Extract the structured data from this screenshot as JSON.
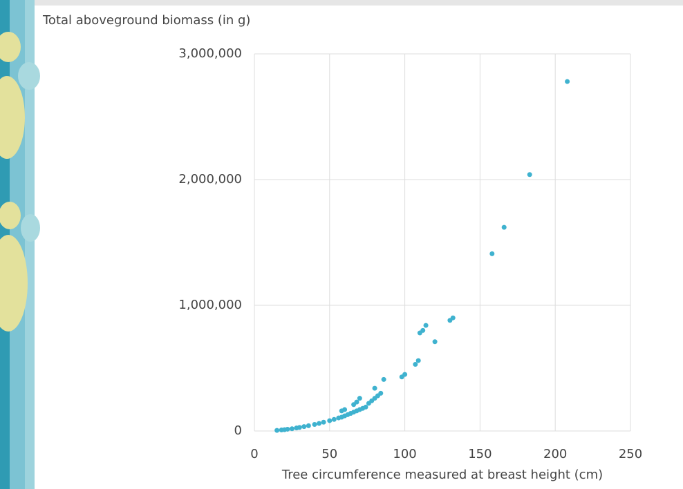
{
  "chart_data": {
    "type": "scatter",
    "y_label": "Total aboveground biomass (in g)",
    "x_label": "Tree circumference measured at breast height (cm)",
    "color": "#3fb2cf",
    "x": [
      15,
      18,
      20,
      22,
      25,
      28,
      30,
      33,
      36,
      40,
      43,
      46,
      50,
      53,
      56,
      58,
      58,
      60,
      60,
      62,
      64,
      66,
      66,
      68,
      68,
      70,
      70,
      72,
      74,
      76,
      78,
      80,
      80,
      82,
      84,
      86,
      98,
      100,
      107,
      109,
      110,
      112,
      114,
      120,
      130,
      132,
      158,
      166,
      183,
      208
    ],
    "values": [
      5000,
      8000,
      10000,
      14000,
      18000,
      24000,
      28000,
      35000,
      42000,
      52000,
      60000,
      70000,
      82000,
      92000,
      104000,
      110000,
      160000,
      120000,
      170000,
      130000,
      140000,
      150000,
      210000,
      160000,
      230000,
      170000,
      260000,
      180000,
      190000,
      220000,
      240000,
      260000,
      340000,
      280000,
      300000,
      410000,
      430000,
      450000,
      530000,
      560000,
      780000,
      800000,
      840000,
      710000,
      880000,
      900000,
      1410000,
      1620000,
      2040000,
      2780000
    ],
    "xlim": [
      0,
      250
    ],
    "xticks": [
      0,
      50,
      100,
      150,
      200,
      250
    ],
    "ylim": [
      0,
      3000000
    ],
    "yticks": [
      {
        "value": 0,
        "label": "0"
      },
      {
        "value": 1000000,
        "label": "1,000,000"
      },
      {
        "value": 2000000,
        "label": "2,000,000"
      },
      {
        "value": 3000000,
        "label": "3,000,000"
      }
    ],
    "grid": true
  }
}
